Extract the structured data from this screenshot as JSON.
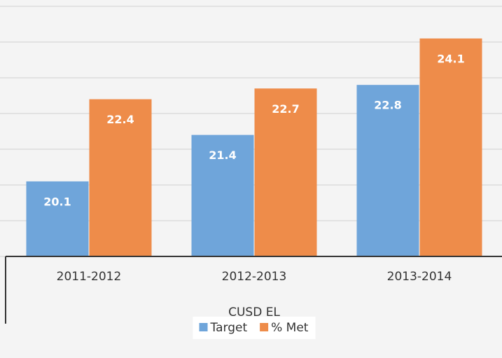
{
  "chart_data": {
    "type": "bar",
    "x_label": "CUSD EL",
    "categories": [
      "2011-2012",
      "2012-2013",
      "2013-2014"
    ],
    "series": [
      {
        "name": "Target",
        "color": "#6fa5da",
        "values": [
          20.1,
          21.4,
          22.8
        ]
      },
      {
        "name": "% Met",
        "color": "#ee8c4a",
        "values": [
          22.4,
          22.7,
          24.1
        ]
      }
    ],
    "ylim": [
      18,
      25
    ],
    "yticks": [
      18,
      19,
      20,
      21,
      22,
      23,
      24,
      25
    ],
    "grid": true,
    "legend": "bottom"
  }
}
